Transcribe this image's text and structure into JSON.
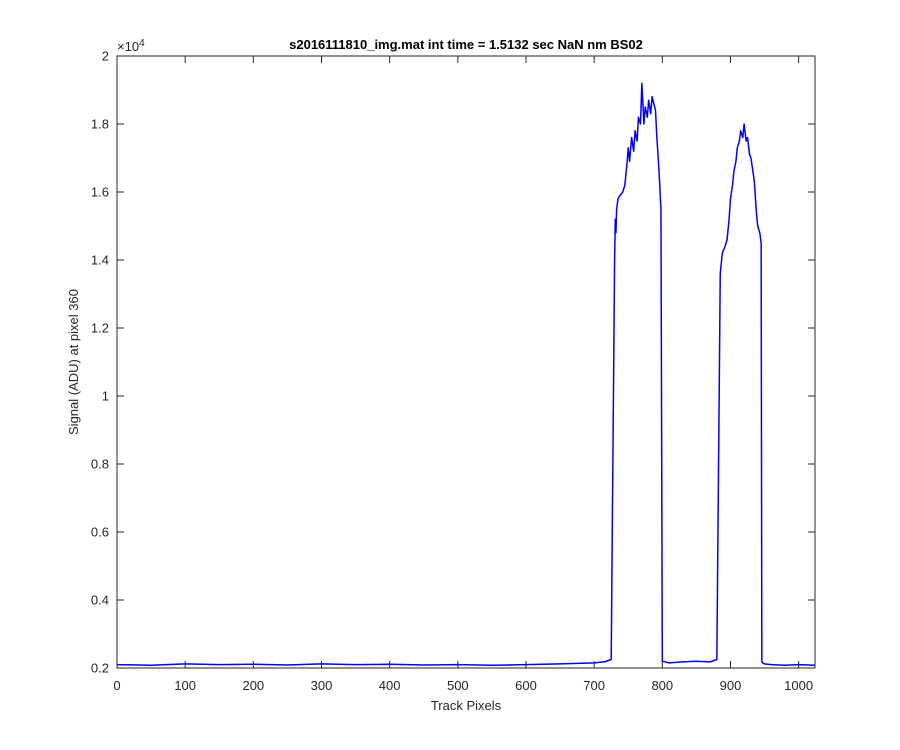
{
  "chart_data": {
    "type": "line",
    "title": "s2016111810_img.mat int time = 1.5132 sec  NaN nm BS02",
    "xlabel": "Track Pixels",
    "ylabel": "Signal (ADU) at pixel 360",
    "xlim": [
      0,
      1024
    ],
    "ylim": [
      2000,
      20000
    ],
    "y_exponent_label": "×10",
    "y_exponent_power": "4",
    "x_ticks": [
      0,
      100,
      200,
      300,
      400,
      500,
      600,
      700,
      800,
      900,
      1000
    ],
    "x_tick_labels": [
      "0",
      "100",
      "200",
      "300",
      "400",
      "500",
      "600",
      "700",
      "800",
      "900",
      "1000"
    ],
    "y_ticks": [
      2000,
      4000,
      6000,
      8000,
      10000,
      12000,
      14000,
      16000,
      18000,
      20000
    ],
    "y_tick_labels": [
      "0.2",
      "0.4",
      "0.6",
      "0.8",
      "1",
      "1.2",
      "1.4",
      "1.6",
      "1.8",
      "2"
    ],
    "grid": false,
    "series": [
      {
        "color": "#0000ff",
        "x": [
          0,
          50,
          100,
          150,
          200,
          250,
          300,
          350,
          400,
          450,
          500,
          550,
          600,
          650,
          700,
          715,
          725,
          730,
          731,
          732,
          733,
          735,
          738,
          742,
          745,
          748,
          750,
          752,
          755,
          758,
          760,
          763,
          765,
          768,
          770,
          773,
          775,
          778,
          780,
          783,
          785,
          790,
          792,
          794,
          796,
          798,
          800,
          810,
          830,
          850,
          870,
          880,
          885,
          888,
          892,
          895,
          898,
          900,
          903,
          905,
          908,
          910,
          913,
          915,
          918,
          920,
          923,
          925,
          928,
          930,
          933,
          935,
          938,
          940,
          943,
          945,
          946,
          947,
          950,
          960,
          980,
          1000,
          1024
        ],
        "y": [
          2100,
          2080,
          2120,
          2100,
          2110,
          2090,
          2120,
          2100,
          2110,
          2090,
          2100,
          2080,
          2100,
          2120,
          2150,
          2180,
          2250,
          14000,
          15200,
          14800,
          15500,
          15800,
          15900,
          16000,
          16200,
          16800,
          17300,
          16900,
          17600,
          17200,
          17800,
          17500,
          18200,
          18000,
          19200,
          18000,
          18500,
          18200,
          18700,
          18300,
          18800,
          18400,
          17600,
          17000,
          16300,
          15500,
          2200,
          2150,
          2180,
          2200,
          2180,
          2250,
          13600,
          14200,
          14400,
          14600,
          15200,
          15800,
          16200,
          16600,
          16900,
          17300,
          17500,
          17800,
          17600,
          18000,
          17500,
          17600,
          17100,
          17000,
          16600,
          16300,
          15400,
          15000,
          14800,
          14500,
          2200,
          2150,
          2120,
          2100,
          2080,
          2100,
          2080
        ]
      }
    ]
  }
}
